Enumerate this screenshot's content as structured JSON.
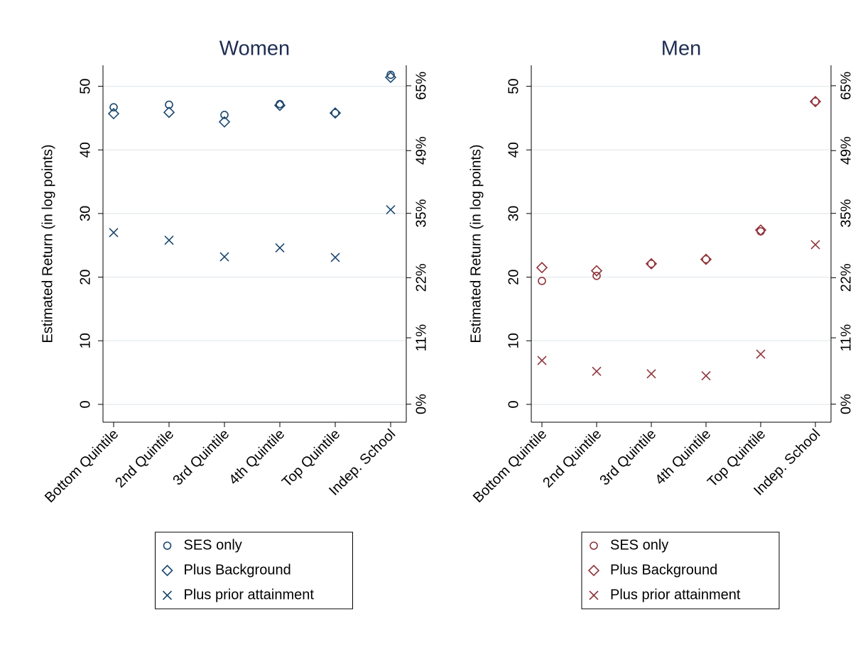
{
  "chart_data": [
    {
      "type": "scatter",
      "title": "Women",
      "y_label": "Estimated Return (in log points)",
      "categories": [
        "Bottom Quintile",
        "2nd Quintile",
        "3rd Quintile",
        "4th Quintile",
        "Top Quintile",
        "Indep. School"
      ],
      "series": [
        {
          "name": "SES only",
          "color": "#1a476f",
          "marker": "circle",
          "values": [
            46.7,
            47.1,
            45.5,
            47.2,
            45.8,
            51.8
          ]
        },
        {
          "name": "Plus Background",
          "color": "#1a476f",
          "marker": "diamond",
          "values": [
            45.7,
            45.9,
            44.4,
            47.0,
            45.8,
            51.4
          ]
        },
        {
          "name": "Plus prior attainment",
          "color": "#1a476f",
          "marker": "x",
          "values": [
            27.0,
            25.8,
            23.2,
            24.6,
            23.1,
            30.6
          ]
        }
      ],
      "ylim": [
        -2.8,
        53.3
      ],
      "yticks": [
        0,
        10,
        20,
        30,
        40,
        50
      ],
      "y2scale": "log-points",
      "y2lim": [
        -2.8,
        70.4
      ],
      "y2ticks": [
        {
          "value": 0,
          "label": "0%"
        },
        {
          "value": 11,
          "label": "11%"
        },
        {
          "value": 22,
          "label": "22%"
        },
        {
          "value": 35,
          "label": "35%"
        },
        {
          "value": 49,
          "label": "49%"
        },
        {
          "value": 65,
          "label": "65%"
        }
      ],
      "grid": true
    },
    {
      "type": "scatter",
      "title": "Men",
      "y_label": "Estimated Return (in log points)",
      "categories": [
        "Bottom Quintile",
        "2nd Quintile",
        "3rd Quintile",
        "4th Quintile",
        "Top Quintile",
        "Indep. School"
      ],
      "series": [
        {
          "name": "SES only",
          "color": "#90353b",
          "marker": "circle",
          "values": [
            19.4,
            20.2,
            22.1,
            22.8,
            27.2,
            47.6
          ]
        },
        {
          "name": "Plus Background",
          "color": "#90353b",
          "marker": "diamond",
          "values": [
            21.5,
            21.0,
            22.1,
            22.8,
            27.4,
            47.6
          ]
        },
        {
          "name": "Plus prior attainment",
          "color": "#90353b",
          "marker": "x",
          "values": [
            6.9,
            5.2,
            4.8,
            4.5,
            7.9,
            25.1
          ]
        }
      ],
      "ylim": [
        -2.8,
        53.3
      ],
      "yticks": [
        0,
        10,
        20,
        30,
        40,
        50
      ],
      "y2scale": "log-points",
      "y2lim": [
        -2.8,
        70.4
      ],
      "y2ticks": [
        {
          "value": 0,
          "label": "0%"
        },
        {
          "value": 11,
          "label": "11%"
        },
        {
          "value": 22,
          "label": "22%"
        },
        {
          "value": 35,
          "label": "35%"
        },
        {
          "value": 49,
          "label": "49%"
        },
        {
          "value": 65,
          "label": "65%"
        }
      ],
      "grid": true
    }
  ]
}
